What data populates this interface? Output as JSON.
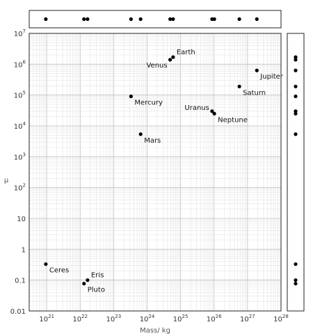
{
  "chart_data": {
    "type": "scatter",
    "xlabel": "Mass/ kg",
    "ylabel": "μ",
    "x_scale": "log",
    "y_scale": "log",
    "xlim": [
      3e+20,
      1e+28
    ],
    "ylim": [
      0.01,
      10000000
    ],
    "x_ticks": [
      {
        "base": "10",
        "exp": "21",
        "value": 1e+21
      },
      {
        "base": "10",
        "exp": "22",
        "value": 1e+22
      },
      {
        "base": "10",
        "exp": "23",
        "value": 1e+23
      },
      {
        "base": "10",
        "exp": "24",
        "value": 1e+24
      },
      {
        "base": "10",
        "exp": "25",
        "value": 1e+25
      },
      {
        "base": "10",
        "exp": "26",
        "value": 1e+26
      },
      {
        "base": "10",
        "exp": "27",
        "value": 1e+27
      },
      {
        "base": "10",
        "exp": "28",
        "value": 1e+28
      }
    ],
    "y_ticks": [
      {
        "base": "0.01",
        "exp": "",
        "value": 0.01
      },
      {
        "base": "0.1",
        "exp": "",
        "value": 0.1
      },
      {
        "base": "1",
        "exp": "",
        "value": 1
      },
      {
        "base": "10",
        "exp": "",
        "value": 10
      },
      {
        "base": "10",
        "exp": "2",
        "value": 100
      },
      {
        "base": "10",
        "exp": "3",
        "value": 1000
      },
      {
        "base": "10",
        "exp": "4",
        "value": 10000
      },
      {
        "base": "10",
        "exp": "5",
        "value": 100000
      },
      {
        "base": "10",
        "exp": "6",
        "value": 1000000
      },
      {
        "base": "10",
        "exp": "7",
        "value": 10000000
      }
    ],
    "grid": true,
    "marginal_plots": [
      "top",
      "right"
    ],
    "points": [
      {
        "label": "Ceres",
        "x": 9.4e+20,
        "y": 0.33,
        "label_pos": "right-below"
      },
      {
        "label": "Pluto",
        "x": 1.3e+22,
        "y": 0.077,
        "label_pos": "right-below"
      },
      {
        "label": "Eris",
        "x": 1.66e+22,
        "y": 0.1,
        "label_pos": "right-above"
      },
      {
        "label": "Mercury",
        "x": 3.3e+23,
        "y": 91000,
        "label_pos": "right-below"
      },
      {
        "label": "Mars",
        "x": 6.4e+23,
        "y": 5400,
        "label_pos": "right-below"
      },
      {
        "label": "Venus",
        "x": 4.87e+24,
        "y": 1400000,
        "label_pos": "left-below"
      },
      {
        "label": "Earth",
        "x": 5.97e+24,
        "y": 1700000,
        "label_pos": "right-above"
      },
      {
        "label": "Uranus",
        "x": 8.7e+25,
        "y": 30000,
        "label_pos": "left-above"
      },
      {
        "label": "Neptune",
        "x": 1.02e+26,
        "y": 25000,
        "label_pos": "right-below"
      },
      {
        "label": "Saturn",
        "x": 5.7e+26,
        "y": 190000,
        "label_pos": "right-below"
      },
      {
        "label": "Jupiter",
        "x": 1.9e+27,
        "y": 630000,
        "label_pos": "right-below"
      }
    ]
  }
}
